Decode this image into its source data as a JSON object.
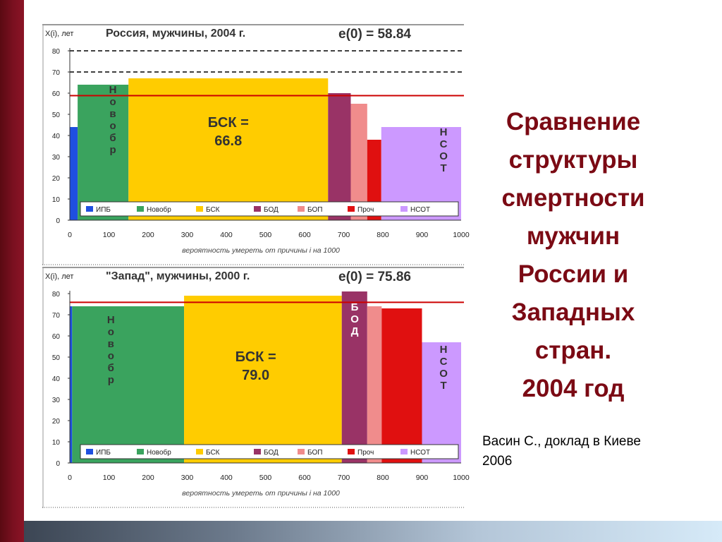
{
  "slide": {
    "title_lines": [
      "Сравнение",
      "структуры",
      "смертности",
      "мужчин",
      "России и",
      "Западных",
      "стран.",
      "2004 год"
    ],
    "credit_lines": [
      "Васин С., доклад в Киеве",
      "2006"
    ]
  },
  "chart_data": [
    {
      "type": "bar",
      "title": "Россия, мужчины, 2004 г.",
      "ylabel": "X(i), лет",
      "e0_label": "e(0) = 58.84",
      "e0": 58.84,
      "xlabel": "вероятность умереть от причины i на 1000",
      "xlim": [
        0,
        1000
      ],
      "ylim": [
        0,
        80
      ],
      "xticks": [
        0,
        100,
        200,
        300,
        400,
        500,
        600,
        700,
        800,
        900,
        1000
      ],
      "yticks": [
        0,
        10,
        20,
        30,
        40,
        50,
        60,
        70,
        80
      ],
      "dashed_lines": [
        80,
        70
      ],
      "grid": false,
      "bars": [
        {
          "cause": "ИПБ",
          "x0": 0,
          "x1": 20,
          "value": 44
        },
        {
          "cause": "Новобр",
          "x0": 20,
          "x1": 150,
          "value": 64
        },
        {
          "cause": "БСК",
          "x0": 150,
          "x1": 660,
          "value": 67
        },
        {
          "cause": "БОД",
          "x0": 660,
          "x1": 718,
          "value": 60
        },
        {
          "cause": "БОП",
          "x0": 718,
          "x1": 760,
          "value": 55
        },
        {
          "cause": "Проч",
          "x0": 760,
          "x1": 796,
          "value": 38
        },
        {
          "cause": "НСОТ",
          "x0": 796,
          "x1": 1000,
          "value": 44
        }
      ],
      "bar_labels": [
        {
          "text": "БСК =\n66.8",
          "x": 405,
          "y": 44
        },
        {
          "text": "Н\nо\nв\nо\nб\nр",
          "x": 110,
          "y": 60,
          "vertical": true
        },
        {
          "text": "Н\nС\nО\nТ",
          "x": 955,
          "y": 40,
          "vertical": true
        }
      ],
      "legend": [
        "ИПБ",
        "Новобр",
        "БСК",
        "БОД",
        "БОП",
        "Проч",
        "НСОТ"
      ],
      "legend_position": "bottom"
    },
    {
      "type": "bar",
      "title": "\"Запад\", мужчины, 2000 г.",
      "ylabel": "X(i), лет",
      "e0_label": "e(0) = 75.86",
      "e0": 75.86,
      "xlabel": "вероятность умереть от причины i на 1000",
      "xlim": [
        0,
        1000
      ],
      "ylim": [
        0,
        80
      ],
      "xticks": [
        0,
        100,
        200,
        300,
        400,
        500,
        600,
        700,
        800,
        900,
        1000
      ],
      "yticks": [
        0,
        10,
        20,
        30,
        40,
        50,
        60,
        70,
        80
      ],
      "dashed_lines": [],
      "grid": false,
      "bars": [
        {
          "cause": "ИПБ",
          "x0": 0,
          "x1": 6,
          "value": 74
        },
        {
          "cause": "Новобр",
          "x0": 6,
          "x1": 292,
          "value": 74
        },
        {
          "cause": "БСК",
          "x0": 292,
          "x1": 695,
          "value": 79
        },
        {
          "cause": "БОД",
          "x0": 695,
          "x1": 760,
          "value": 81
        },
        {
          "cause": "БОП",
          "x0": 760,
          "x1": 797,
          "value": 74
        },
        {
          "cause": "Проч",
          "x0": 797,
          "x1": 900,
          "value": 73
        },
        {
          "cause": "НСОТ",
          "x0": 900,
          "x1": 1000,
          "value": 57
        }
      ],
      "bar_labels": [
        {
          "text": "БСК =\n79.0",
          "x": 475,
          "y": 48
        },
        {
          "text": "Н\nо\nв\nо\nб\nр",
          "x": 105,
          "y": 66,
          "vertical": true
        },
        {
          "text": "Б\nО\nД",
          "x": 728,
          "y": 72,
          "vertical": true,
          "color": "#ffffff"
        },
        {
          "text": "Н\nС\nО\nТ",
          "x": 955,
          "y": 52,
          "vertical": true
        }
      ],
      "legend": [
        "ИПБ",
        "Новобр",
        "БСК",
        "БОД",
        "БОП",
        "Проч",
        "НСОТ"
      ],
      "legend_position": "bottom"
    }
  ],
  "colors": {
    "ИПБ": "#1f4fe0",
    "Новобр": "#3aa35e",
    "БСК": "#ffcc00",
    "БОД": "#993366",
    "БОП": "#f08c8c",
    "Проч": "#e01010",
    "НСОТ": "#cc99ff",
    "e0_line": "#cc0000",
    "axis_text": "#222222",
    "title_red": "#7b0a14"
  }
}
